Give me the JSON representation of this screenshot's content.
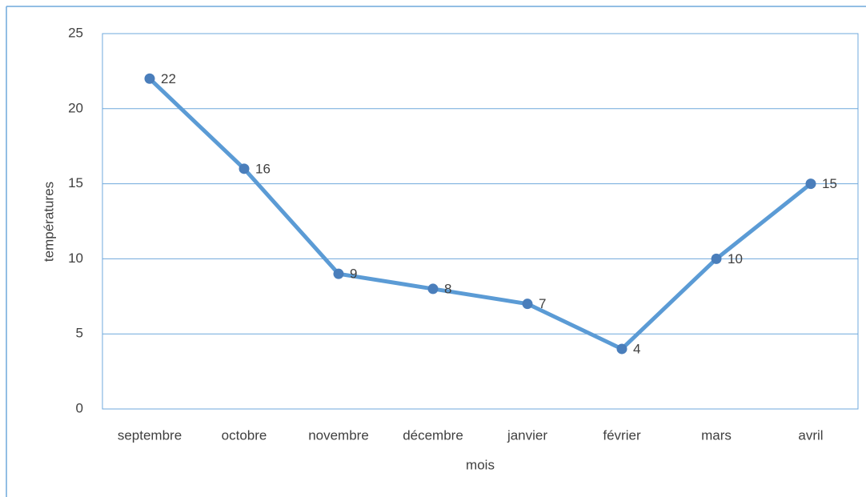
{
  "chart_data": {
    "type": "line",
    "categories": [
      "septembre",
      "octobre",
      "novembre",
      "décembre",
      "janvier",
      "février",
      "mars",
      "avril"
    ],
    "series": [
      {
        "color": "#5b9bd5",
        "values": [
          22,
          16,
          9,
          8,
          7,
          4,
          10,
          15
        ]
      }
    ],
    "xlabel": "mois",
    "ylabel": "températures",
    "ylim": [
      0,
      25
    ],
    "yticks": [
      0,
      5,
      10,
      15,
      20,
      25
    ],
    "grid": true,
    "data_labels": true
  }
}
